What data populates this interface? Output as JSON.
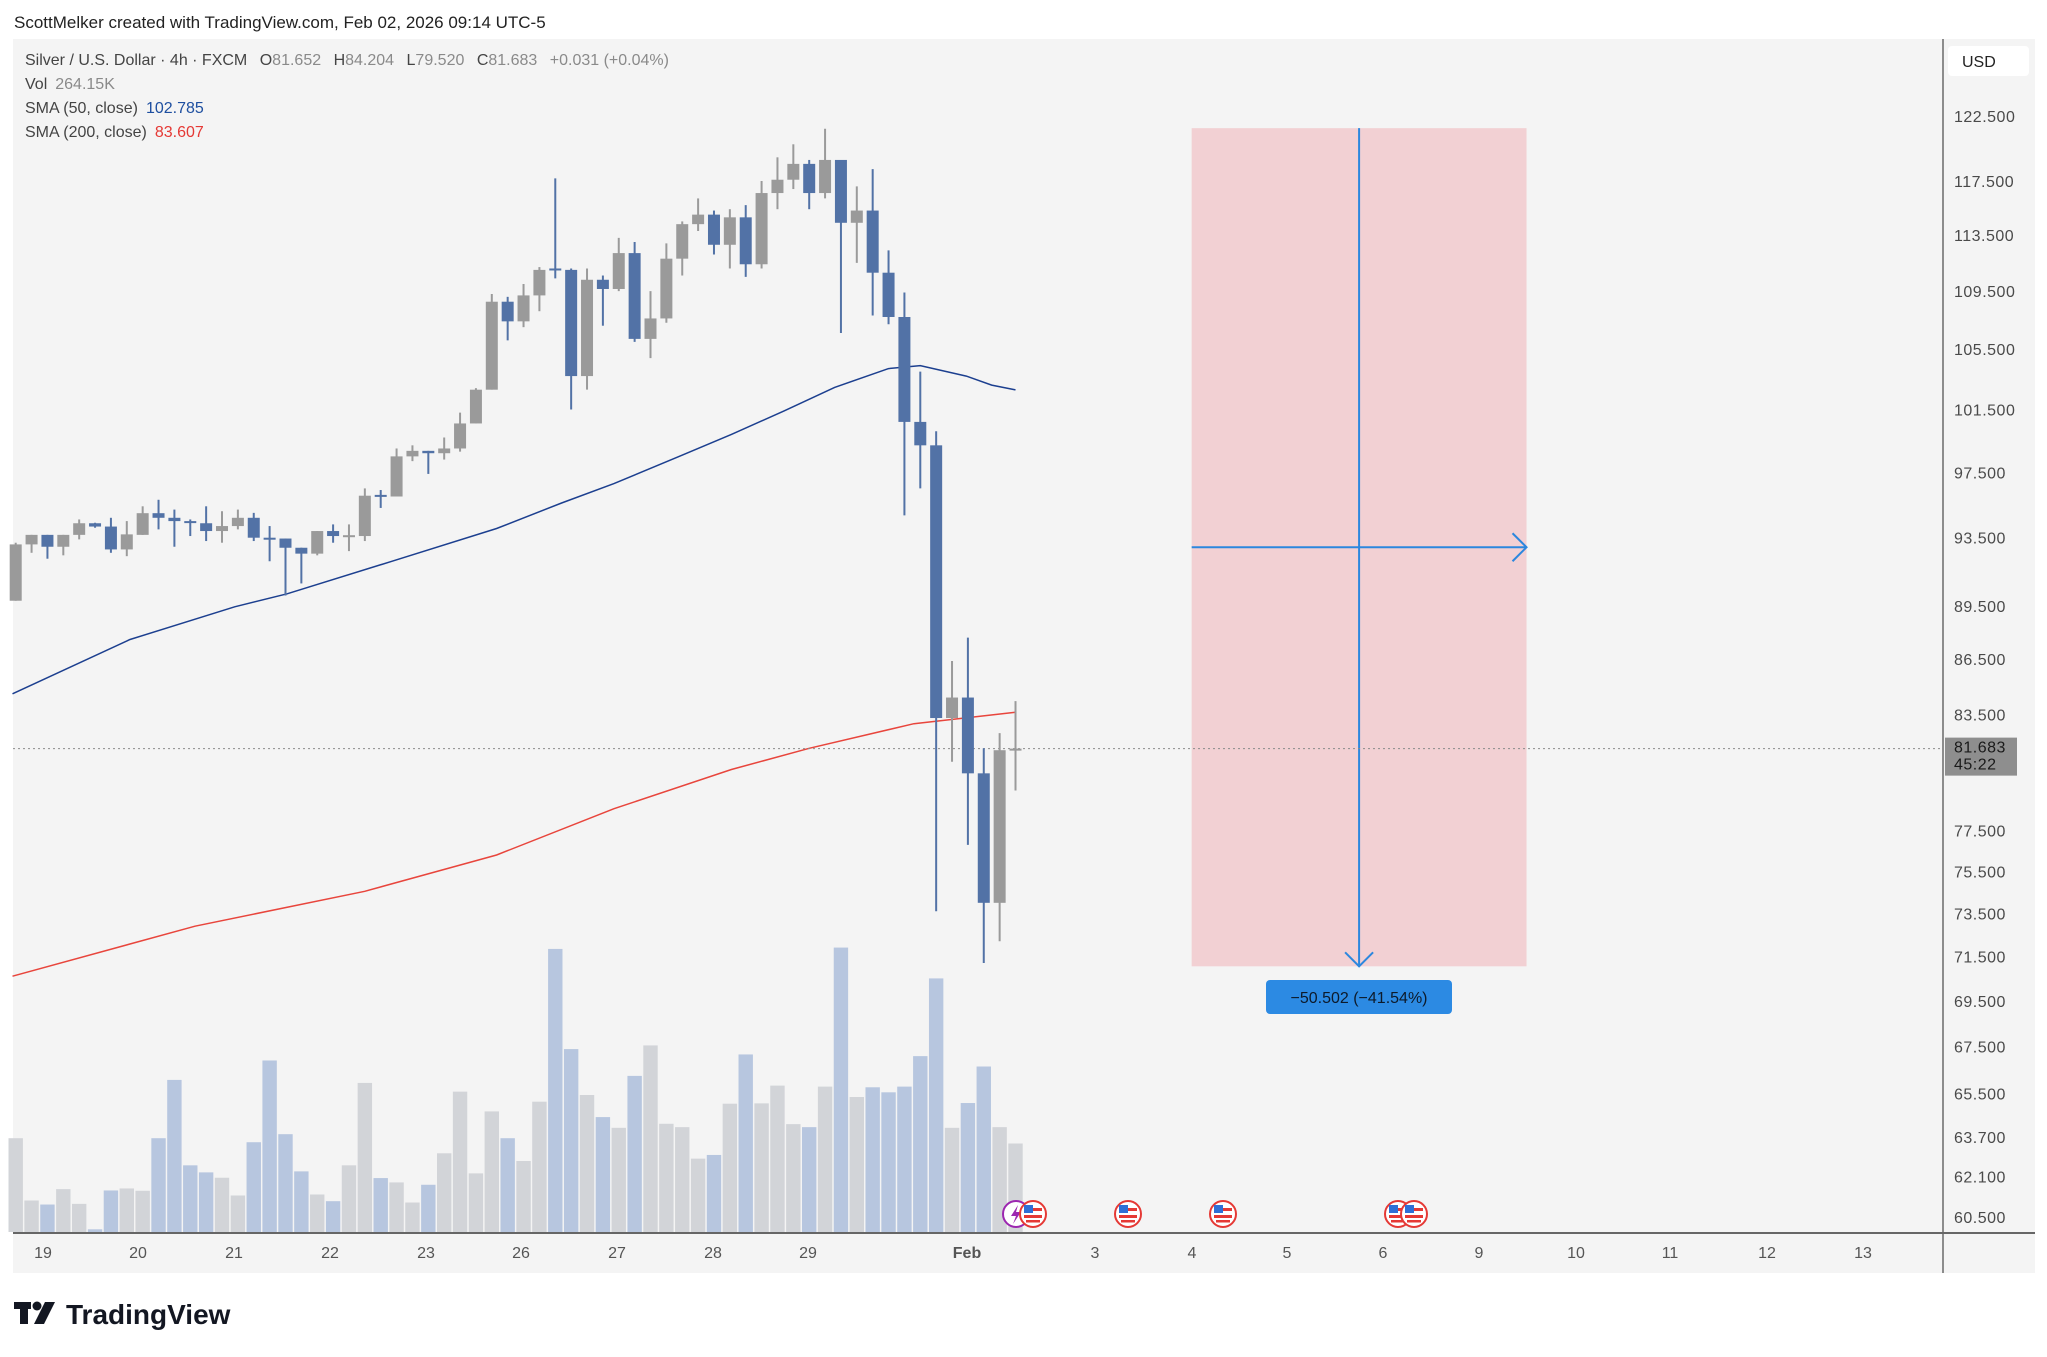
{
  "header": {
    "attribution": "ScottMelker created with TradingView.com, Feb 02, 2026 09:14 UTC-5"
  },
  "legend": {
    "symbol": "Silver / U.S. Dollar · 4h · FXCM",
    "open_label": "O",
    "open": "81.652",
    "high_label": "H",
    "high": "84.204",
    "low_label": "L",
    "low": "79.520",
    "close_label": "C",
    "close": "81.683",
    "change": "+0.031 (+0.04%)",
    "vol_label": "Vol",
    "vol": "264.15K",
    "sma50_label": "SMA (50, close)",
    "sma50": "102.785",
    "sma200_label": "SMA (200, close)",
    "sma200": "83.607"
  },
  "price_axis": {
    "currency": "USD",
    "ticks": [
      "122.500",
      "117.500",
      "113.500",
      "109.500",
      "105.500",
      "101.500",
      "97.500",
      "93.500",
      "89.500",
      "86.500",
      "83.500",
      "77.500",
      "75.500",
      "73.500",
      "71.500",
      "69.500",
      "67.500",
      "65.500",
      "63.700",
      "62.100",
      "60.500"
    ],
    "current_price": "81.683",
    "countdown": "45:22"
  },
  "time_axis": {
    "labels": [
      "19",
      "20",
      "21",
      "22",
      "23",
      "26",
      "27",
      "28",
      "29",
      "Feb",
      "3",
      "4",
      "5",
      "6",
      "9",
      "10",
      "11",
      "12",
      "13"
    ]
  },
  "measure": {
    "label": "−50.502 (−41.54%)",
    "price_from": 121.55,
    "price_to": 71.05
  },
  "events": [
    "lightning-event-icon",
    "us-flag-event-icon",
    "us-flag-event-icon",
    "us-flag-event-icon",
    "us-flag-event-icon",
    "us-flag-event-icon"
  ],
  "logo": {
    "text": "TradingView"
  },
  "colors": {
    "up": "#9a9a9a",
    "down": "#5272a6",
    "vol_up": "#d2d4d8",
    "vol_down": "#b7c6df",
    "sma50": "#1c3f8f",
    "sma200": "#e8453c",
    "measure_fill": "#f2d0d3",
    "measure_line": "#2c87de",
    "measure_label_bg": "#2c8ae3"
  },
  "chart_data": {
    "type": "candlestick",
    "title": "Silver / U.S. Dollar · 4h · FXCM",
    "scale": "log",
    "ylim": [
      60.5,
      122.5
    ],
    "ohlc": [
      [
        89.8,
        93.2,
        89.8,
        93.1
      ],
      [
        93.1,
        93.67,
        92.6,
        93.67
      ],
      [
        93.67,
        93.67,
        92.25,
        92.96
      ],
      [
        92.96,
        93.67,
        92.45,
        93.67
      ],
      [
        93.67,
        94.6,
        93.4,
        94.37
      ],
      [
        94.37,
        94.4,
        94.1,
        94.17
      ],
      [
        94.17,
        94.7,
        92.6,
        92.8
      ],
      [
        92.8,
        94.5,
        92.4,
        93.7
      ],
      [
        93.67,
        95.4,
        93.67,
        94.98
      ],
      [
        94.98,
        95.8,
        94.0,
        94.7
      ],
      [
        94.7,
        95.2,
        92.96,
        94.5
      ],
      [
        94.5,
        94.6,
        93.6,
        94.4
      ],
      [
        94.37,
        95.4,
        93.3,
        93.9
      ],
      [
        93.9,
        95.1,
        93.2,
        94.2
      ],
      [
        94.2,
        95.2,
        94.0,
        94.7
      ],
      [
        94.7,
        95.0,
        93.3,
        93.5
      ],
      [
        93.5,
        94.2,
        92.1,
        93.45
      ],
      [
        93.45,
        93.45,
        90.1,
        92.9
      ],
      [
        92.9,
        92.9,
        90.8,
        92.55
      ],
      [
        92.55,
        93.9,
        92.45,
        93.9
      ],
      [
        93.9,
        94.3,
        93.2,
        93.6
      ],
      [
        93.6,
        94.3,
        92.7,
        93.65
      ],
      [
        93.6,
        96.5,
        93.3,
        96.05
      ],
      [
        96.1,
        96.4,
        95.3,
        96.05
      ],
      [
        96.0,
        99.0,
        96.0,
        98.5
      ],
      [
        98.5,
        99.2,
        98.2,
        98.85
      ],
      [
        98.85,
        98.85,
        97.4,
        98.7
      ],
      [
        98.7,
        99.7,
        98.3,
        99.0
      ],
      [
        99.0,
        101.3,
        98.8,
        100.6
      ],
      [
        100.6,
        102.9,
        100.6,
        102.8
      ],
      [
        102.8,
        109.3,
        102.8,
        108.76
      ],
      [
        108.76,
        109.1,
        106.1,
        107.4
      ],
      [
        107.4,
        110.0,
        107.0,
        109.2
      ],
      [
        109.2,
        111.2,
        108.1,
        111.0
      ],
      [
        111.1,
        117.7,
        110.4,
        111.0
      ],
      [
        111.0,
        111.1,
        101.5,
        103.7
      ],
      [
        103.7,
        111.1,
        102.8,
        110.3
      ],
      [
        110.3,
        110.6,
        107.1,
        109.65
      ],
      [
        109.65,
        113.3,
        109.5,
        112.2
      ],
      [
        112.2,
        113.0,
        106.0,
        106.2
      ],
      [
        106.2,
        109.5,
        104.9,
        107.6
      ],
      [
        107.6,
        112.9,
        107.3,
        111.8
      ],
      [
        111.8,
        114.5,
        110.6,
        114.3
      ],
      [
        114.3,
        116.2,
        113.8,
        115.0
      ],
      [
        115.0,
        115.3,
        112.1,
        112.8
      ],
      [
        112.8,
        115.4,
        111.1,
        114.8
      ],
      [
        114.8,
        115.7,
        110.5,
        111.4
      ],
      [
        111.4,
        117.5,
        111.1,
        116.6
      ],
      [
        116.6,
        119.3,
        115.4,
        117.6
      ],
      [
        117.6,
        120.3,
        116.9,
        118.8
      ],
      [
        118.8,
        119.1,
        115.4,
        116.6
      ],
      [
        116.6,
        121.5,
        116.2,
        119.1
      ],
      [
        119.1,
        119.1,
        106.6,
        114.4
      ],
      [
        114.4,
        117.1,
        111.5,
        115.3
      ],
      [
        115.3,
        118.4,
        107.8,
        110.8
      ],
      [
        110.8,
        112.4,
        107.2,
        107.7
      ],
      [
        107.7,
        109.4,
        94.85,
        100.7
      ],
      [
        100.7,
        104.0,
        96.5,
        99.2
      ],
      [
        99.2,
        100.1,
        73.6,
        83.3
      ],
      [
        83.3,
        86.4,
        81.0,
        84.4
      ],
      [
        84.4,
        87.7,
        76.8,
        80.4
      ],
      [
        80.4,
        81.7,
        71.2,
        74.0
      ],
      [
        74.0,
        82.5,
        72.2,
        81.6
      ],
      [
        81.652,
        84.204,
        79.52,
        81.683
      ]
    ],
    "volume_k": [
      280,
      94,
      82,
      128,
      84,
      8,
      124,
      130,
      123,
      280,
      454,
      199,
      178,
      162,
      109,
      268,
      512,
      292,
      181,
      112,
      92,
      199,
      445,
      161,
      148,
      88,
      141,
      235,
      419,
      175,
      360,
      280,
      212,
      389,
      845,
      546,
      409,
      343,
      311,
      466,
      557,
      323,
      313,
      219,
      230,
      383,
      530,
      384,
      437,
      322,
      313,
      434,
      849,
      403,
      432,
      417,
      434,
      525,
      757,
      311,
      385,
      494,
      313,
      264.15
    ],
    "sma50": [
      [
        -0.2,
        84.6
      ],
      [
        7.2,
        87.6
      ],
      [
        13.8,
        89.45
      ],
      [
        17.1,
        90.2
      ],
      [
        23.7,
        92.1
      ],
      [
        30.3,
        94.05
      ],
      [
        34.4,
        95.6
      ],
      [
        37.7,
        96.8
      ],
      [
        41.8,
        98.5
      ],
      [
        45.1,
        99.9
      ],
      [
        48.4,
        101.4
      ],
      [
        51.6,
        102.95
      ],
      [
        55,
        104.2
      ],
      [
        57,
        104.4
      ],
      [
        59.9,
        103.7
      ],
      [
        61.5,
        103.1
      ],
      [
        63,
        102.785
      ]
    ],
    "sma200": [
      [
        -0.2,
        70.6
      ],
      [
        11.3,
        72.9
      ],
      [
        22,
        74.55
      ],
      [
        30.3,
        76.3
      ],
      [
        37.7,
        78.6
      ],
      [
        45.1,
        80.6
      ],
      [
        50,
        81.7
      ],
      [
        56.6,
        83.0
      ],
      [
        63,
        83.607
      ]
    ],
    "measure_bar_range": [
      74.1,
      95.2
    ]
  }
}
